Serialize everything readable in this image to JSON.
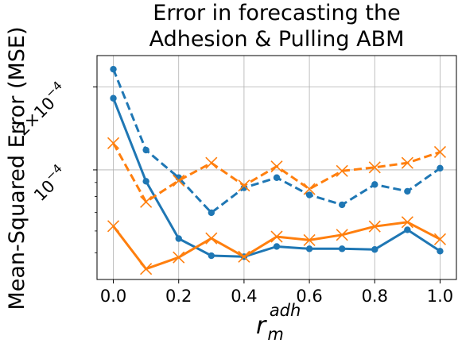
{
  "chart_data": {
    "type": "line",
    "title_lines": [
      "Error in forecasting the",
      "Adhesion & Pulling ABM"
    ],
    "ylabel": "Mean-Squared Error (MSE)",
    "xlabel": "r_m^adh",
    "xlabel_parts": {
      "base": "r",
      "sub": "m",
      "sup": "adh"
    },
    "x": [
      0.0,
      0.1,
      0.2,
      0.3,
      0.4,
      0.5,
      0.6,
      0.7,
      0.8,
      0.9,
      1.0
    ],
    "xlim": [
      -0.05,
      1.05
    ],
    "ylim": [
      4e-05,
      0.00026
    ],
    "yscale": "log",
    "x_ticks": [
      0.0,
      0.2,
      0.4,
      0.6,
      0.8,
      1.0
    ],
    "x_tick_labels": [
      "0.0",
      "0.2",
      "0.4",
      "0.6",
      "0.8",
      "1.0"
    ],
    "y_ticks": [
      0.0001,
      0.0002
    ],
    "y_tick_labels": [
      {
        "pre": "10",
        "sup": "−4"
      },
      {
        "pre": "2×10",
        "sup": "−4"
      }
    ],
    "y_minor_ticks": [
      5e-05,
      6e-05,
      7e-05,
      8e-05,
      9e-05
    ],
    "grid": true,
    "series": [
      {
        "color": "#1f77b4",
        "style": "dashed",
        "marker": "circle",
        "values": [
          0.000232,
          0.000118,
          9.37e-05,
          6.99e-05,
          8.61e-05,
          9.37e-05,
          8.11e-05,
          7.47e-05,
          8.85e-05,
          8.36e-05,
          0.0001014
        ]
      },
      {
        "color": "#1f77b4",
        "style": "solid",
        "marker": "circle",
        "values": [
          0.000182,
          9.09e-05,
          5.63e-05,
          4.88e-05,
          4.84e-05,
          5.27e-05,
          5.17e-05,
          5.17e-05,
          5.14e-05,
          6.06e-05,
          5.07e-05
        ]
      },
      {
        "color": "#ff7f0e",
        "style": "dashed",
        "marker": "x",
        "values": [
          0.000125,
          7.65e-05,
          9.14e-05,
          0.000106,
          8.77e-05,
          0.0001029,
          8.52e-05,
          9.91e-05,
          0.0001021,
          0.000106,
          0.0001161
        ]
      },
      {
        "color": "#ff7f0e",
        "style": "solid",
        "marker": "x",
        "values": [
          6.25e-05,
          4.37e-05,
          4.81e-05,
          5.64e-05,
          4.84e-05,
          5.72e-05,
          5.56e-05,
          5.81e-05,
          6.23e-05,
          6.46e-05,
          5.6e-05
        ]
      }
    ]
  }
}
